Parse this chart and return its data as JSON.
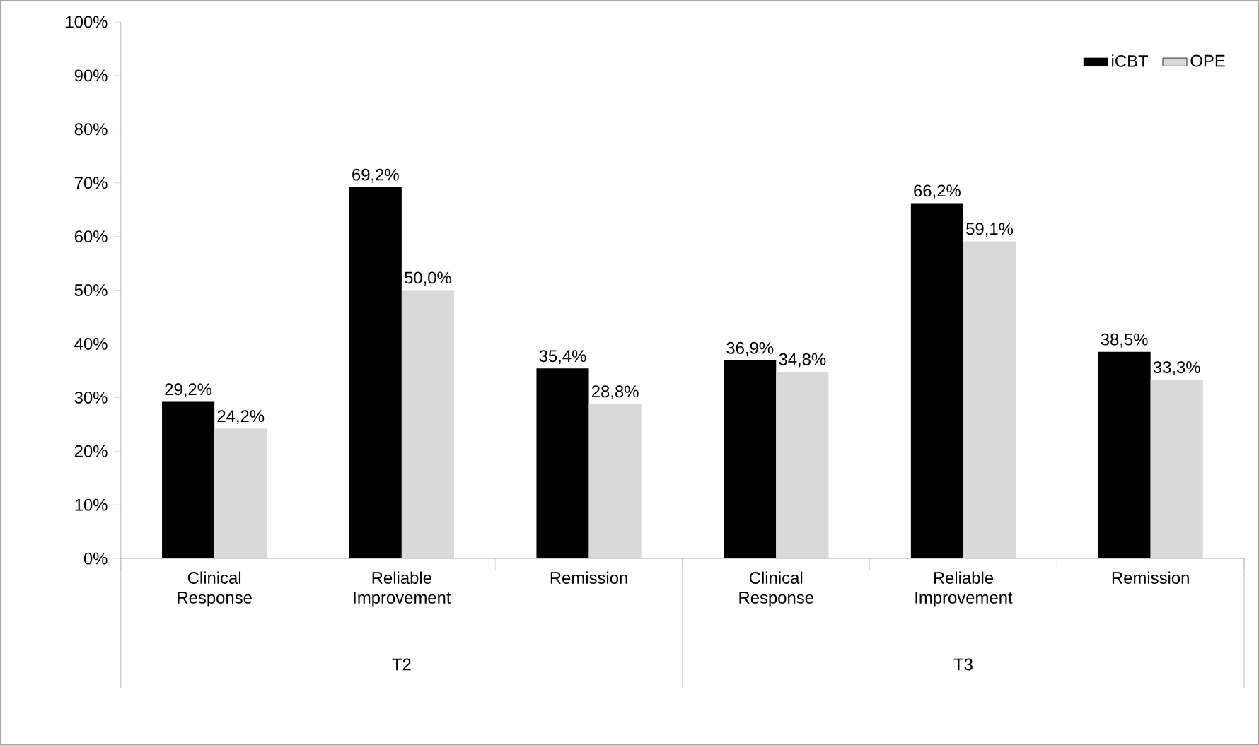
{
  "chart_data": {
    "type": "bar",
    "categories": [
      "Clinical Response",
      "Reliable Improvement",
      "Remission",
      "Clinical Response",
      "Reliable Improvement",
      "Remission"
    ],
    "series": [
      {
        "name": "iCBT",
        "color": "#000000",
        "values": [
          29.2,
          69.2,
          35.4,
          36.9,
          66.2,
          38.5
        ],
        "value_labels": [
          "29,2%",
          "69,2%",
          "35,4%",
          "36,9%",
          "66,2%",
          "38,5%"
        ]
      },
      {
        "name": "OPE",
        "color": "#d9d9d9",
        "values": [
          24.2,
          50.0,
          28.8,
          34.8,
          59.1,
          33.3
        ],
        "value_labels": [
          "24,2%",
          "50,0%",
          "28,8%",
          "34,8%",
          "59,1%",
          "33,3%"
        ]
      }
    ],
    "annotations": [
      "T2",
      "T3"
    ],
    "ylim": [
      0,
      100
    ],
    "yticks": [
      {
        "value": 0,
        "label": "0%"
      },
      {
        "value": 10,
        "label": "10%"
      },
      {
        "value": 20,
        "label": "20%"
      },
      {
        "value": 30,
        "label": "30%"
      },
      {
        "value": 40,
        "label": "40%"
      },
      {
        "value": 50,
        "label": "50%"
      },
      {
        "value": 60,
        "label": "60%"
      },
      {
        "value": 70,
        "label": "70%"
      },
      {
        "value": 80,
        "label": "80%"
      },
      {
        "value": 90,
        "label": "90%"
      },
      {
        "value": 100,
        "label": "100%"
      }
    ],
    "grid": false,
    "legend": "top right"
  }
}
